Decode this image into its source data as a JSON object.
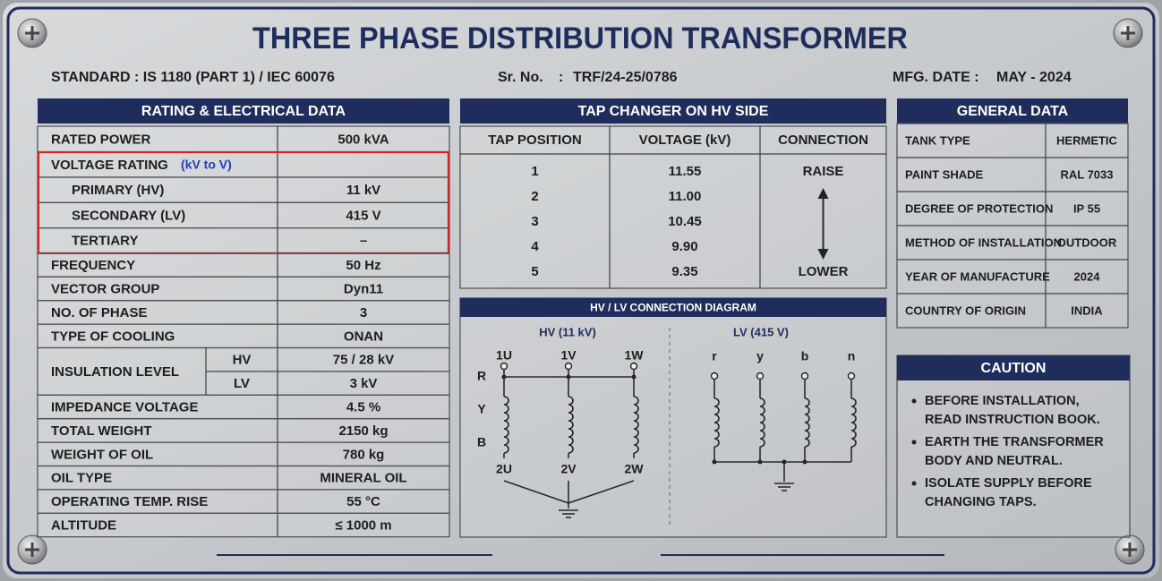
{
  "header": {
    "title": "THREE PHASE DISTRIBUTION TRANSFORMER",
    "standard": "STANDARD : IS 1180 (PART 1) / IEC 60076",
    "serial_label": "Sr. No.",
    "serial_separator": ":",
    "serial_number": "TRF/24-25/0786",
    "mfg_date_label": "MFG. DATE :",
    "mfg_date": "MAY - 2024"
  },
  "rating": {
    "title": "RATING & ELECTRICAL DATA",
    "rows_top": [
      [
        "RATED POWER",
        "500 kVA"
      ]
    ],
    "voltage": {
      "label": "VOLTAGE RATING",
      "note": "(kV to V)",
      "rows": [
        [
          "PRIMARY (HV)",
          "11 kV"
        ],
        [
          "SECONDARY (LV)",
          "415 V"
        ],
        [
          "TERTIARY",
          "–"
        ]
      ]
    },
    "rows_mid": [
      [
        "FREQUENCY",
        "50 Hz"
      ],
      [
        "VECTOR GROUP",
        "Dyn11"
      ],
      [
        "NO. OF PHASE",
        "3"
      ],
      [
        "TYPE OF COOLING",
        "ONAN"
      ]
    ],
    "insulation": {
      "label": "INSULATION LEVEL",
      "rows": [
        [
          "HV",
          "75 / 28 kV"
        ],
        [
          "LV",
          "3 kV"
        ]
      ]
    },
    "rows_bottom": [
      [
        "IMPEDANCE VOLTAGE",
        "4.5 %"
      ],
      [
        "TOTAL WEIGHT",
        "2150 kg"
      ],
      [
        "WEIGHT OF OIL",
        "780 kg"
      ],
      [
        "OIL TYPE",
        "MINERAL OIL"
      ],
      [
        "OPERATING TEMP. RISE",
        "55 °C"
      ],
      [
        "ALTITUDE",
        "≤ 1000 m"
      ]
    ]
  },
  "tap_changer": {
    "title": "TAP CHANGER ON HV SIDE",
    "columns": [
      "TAP POSITION",
      "VOLTAGE (kV)",
      "CONNECTION"
    ],
    "rows": [
      [
        "1",
        "11.55"
      ],
      [
        "2",
        "11.00"
      ],
      [
        "3",
        "10.45"
      ],
      [
        "4",
        "9.90"
      ],
      [
        "5",
        "9.35"
      ]
    ],
    "raise": "RAISE",
    "lower": "LOWER"
  },
  "diagram": {
    "title": "HV / LV CONNECTION DIAGRAM",
    "hv": {
      "label": "HV (11 kV)",
      "top": [
        "1U",
        "1V",
        "1W"
      ],
      "bottom": [
        "2U",
        "2V",
        "2W"
      ],
      "phases": [
        "R",
        "Y",
        "B"
      ]
    },
    "lv": {
      "label": "LV (415 V)",
      "terminals": [
        "r",
        "y",
        "b",
        "n"
      ]
    }
  },
  "general": {
    "title": "GENERAL DATA",
    "rows": [
      [
        "TANK TYPE",
        "HERMETIC"
      ],
      [
        "PAINT SHADE",
        "RAL 7033"
      ],
      [
        "DEGREE OF PROTECTION",
        "IP 55"
      ],
      [
        "METHOD OF INSTALLATION",
        "OUTDOOR"
      ],
      [
        "YEAR OF MANUFACTURE",
        "2024"
      ],
      [
        "COUNTRY OF ORIGIN",
        "INDIA"
      ]
    ]
  },
  "caution": {
    "title": "CAUTION",
    "items": [
      [
        "BEFORE INSTALLATION,",
        "READ INSTRUCTION BOOK."
      ],
      [
        "EARTH THE TRANSFORMER",
        "BODY AND NEUTRAL."
      ],
      [
        "ISOLATE SUPPLY BEFORE",
        "CHANGING TAPS."
      ]
    ]
  }
}
